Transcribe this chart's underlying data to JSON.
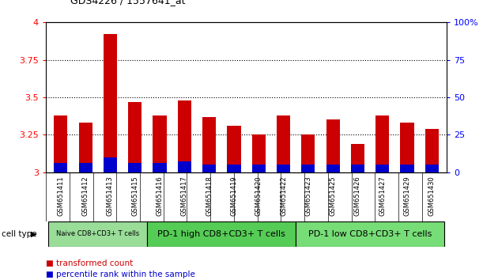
{
  "title": "GDS4226 / 1557641_at",
  "samples": [
    "GSM651411",
    "GSM651412",
    "GSM651413",
    "GSM651415",
    "GSM651416",
    "GSM651417",
    "GSM651418",
    "GSM651419",
    "GSM651420",
    "GSM651422",
    "GSM651423",
    "GSM651425",
    "GSM651426",
    "GSM651427",
    "GSM651429",
    "GSM651430"
  ],
  "transformed_count": [
    3.38,
    3.33,
    3.92,
    3.47,
    3.38,
    3.48,
    3.37,
    3.31,
    3.25,
    3.38,
    3.25,
    3.35,
    3.19,
    3.38,
    3.33,
    3.29
  ],
  "percentile_rank_pct": [
    6,
    6,
    10,
    6,
    6,
    7,
    5,
    5,
    5,
    5,
    5,
    5,
    5,
    5,
    5,
    5
  ],
  "ylim_left": [
    3.0,
    4.0
  ],
  "ylim_right": [
    0,
    100
  ],
  "yticks_left": [
    3.0,
    3.25,
    3.5,
    3.75,
    4.0
  ],
  "yticks_right": [
    0,
    25,
    50,
    75,
    100
  ],
  "ytick_labels_left": [
    "3",
    "3.25",
    "3.5",
    "3.75",
    "4"
  ],
  "ytick_labels_right": [
    "0",
    "25",
    "50",
    "75",
    "100%"
  ],
  "bar_color_red": "#cc0000",
  "bar_color_blue": "#0000cc",
  "cell_groups": [
    {
      "label": "Naive CD8+CD3+ T cells",
      "start": 0,
      "end": 3,
      "color": "#99dd99",
      "small_text": true
    },
    {
      "label": "PD-1 high CD8+CD3+ T cells",
      "start": 4,
      "end": 9,
      "color": "#55cc55",
      "small_text": false
    },
    {
      "label": "PD-1 low CD8+CD3+ T cells",
      "start": 10,
      "end": 15,
      "color": "#77dd77",
      "small_text": false
    }
  ],
  "legend_red_label": "transformed count",
  "legend_blue_label": "percentile rank within the sample",
  "cell_type_label": "cell type",
  "bar_width": 0.55,
  "tick_area_color": "#c8c8c8"
}
